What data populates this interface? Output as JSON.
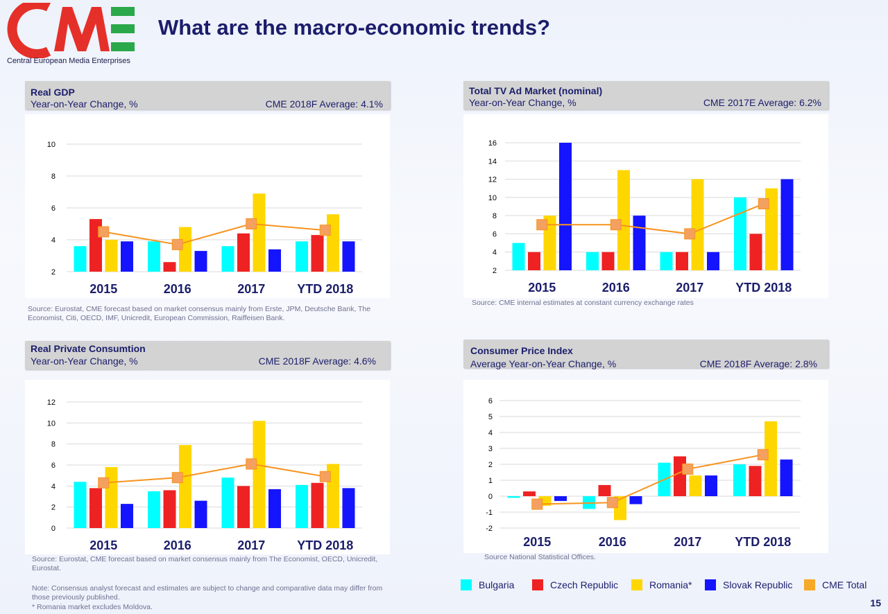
{
  "header": {
    "title": "What are the macro-economic trends?",
    "logo_subtitle": "Central European Media Enterprises"
  },
  "colors": {
    "Bulgaria": "#00ffff",
    "Czech Republic": "#ee2222",
    "Romania*": "#ffd700",
    "Slovak Republic": "#1414ff",
    "CME Total": "#f7931e",
    "title_navy": "#1b1d6b",
    "logo_red": "#e5302a",
    "logo_green": "#2aa84a"
  },
  "panels": {
    "gdp": {
      "title": "Real GDP",
      "subtitle": "Year-on-Year Change, %",
      "average": "CME 2018F Average: 4.1%",
      "source": "Source: Eurostat, CME forecast based on market consensus mainly from Erste, JPM, Deutsche Bank, The Economist, Citi, OECD, IMF, Unicredit, European Commission, Raiffeisen Bank."
    },
    "tv": {
      "title": "Total TV Ad Market (nominal)",
      "subtitle": "Year-on-Year Change, %",
      "average": "CME 2017E Average: 6.2%",
      "source": "Source: CME internal estimates at constant currency exchange rates"
    },
    "consumption": {
      "title": "Real Private Consumtion",
      "subtitle": "Year-on-Year Change, %",
      "average": "CME 2018F Average: 4.6%",
      "source": "Source: Eurostat, CME forecast based on market consensus mainly from The Economist, OECD, Unicredit, Eurostat."
    },
    "cpi": {
      "title": "Consumer Price Index",
      "subtitle": "Average Year-on-Year Change, %",
      "average": "CME 2018F Average: 2.8%",
      "source": "Source National Statistical Offices."
    }
  },
  "legend": [
    "Bulgaria",
    "Czech Republic",
    "Romania*",
    "Slovak Republic",
    "CME Total"
  ],
  "notes": {
    "note": "Note: Consensus analyst forecast and estimates are subject to change and comparative data may differ from those previously published.",
    "romania": "* Romania market excludes Moldova."
  },
  "page_number": "15",
  "chart_data": [
    {
      "id": "gdp",
      "type": "bar",
      "categories": [
        "2015",
        "2016",
        "2017",
        "YTD 2018"
      ],
      "ylim": [
        2,
        10
      ],
      "yticks": [
        2,
        4,
        6,
        8,
        10
      ],
      "grid": true,
      "series": [
        {
          "name": "Bulgaria",
          "values": [
            3.6,
            3.9,
            3.6,
            3.9
          ]
        },
        {
          "name": "Czech Republic",
          "values": [
            5.3,
            2.6,
            4.4,
            4.3
          ]
        },
        {
          "name": "Romania*",
          "values": [
            4.0,
            4.8,
            6.9,
            5.6
          ]
        },
        {
          "name": "Slovak Republic",
          "values": [
            3.9,
            3.3,
            3.4,
            3.9
          ]
        }
      ],
      "line": {
        "name": "CME Total",
        "values": [
          4.5,
          3.7,
          5.0,
          4.6
        ]
      }
    },
    {
      "id": "tv",
      "type": "bar",
      "categories": [
        "2015",
        "2016",
        "2017",
        "YTD 2018"
      ],
      "ylim": [
        2,
        16
      ],
      "yticks": [
        2,
        4,
        6,
        8,
        10,
        12,
        14,
        16
      ],
      "grid": true,
      "series": [
        {
          "name": "Bulgaria",
          "values": [
            5,
            4,
            4,
            10
          ]
        },
        {
          "name": "Czech Republic",
          "values": [
            4,
            4,
            4,
            6
          ]
        },
        {
          "name": "Romania*",
          "values": [
            8,
            13,
            12,
            11
          ]
        },
        {
          "name": "Slovak Republic",
          "values": [
            16,
            8,
            4,
            12
          ]
        }
      ],
      "line": {
        "name": "CME Total",
        "values": [
          7.0,
          7.0,
          6.0,
          9.3
        ]
      }
    },
    {
      "id": "consumption",
      "type": "bar",
      "categories": [
        "2015",
        "2016",
        "2017",
        "YTD 2018"
      ],
      "ylim": [
        0,
        12
      ],
      "yticks": [
        0,
        2,
        4,
        6,
        8,
        10,
        12
      ],
      "grid": true,
      "series": [
        {
          "name": "Bulgaria",
          "values": [
            4.4,
            3.5,
            4.8,
            4.1
          ]
        },
        {
          "name": "Czech Republic",
          "values": [
            3.8,
            3.6,
            4.0,
            4.3
          ]
        },
        {
          "name": "Romania*",
          "values": [
            5.8,
            7.9,
            10.2,
            6.1
          ]
        },
        {
          "name": "Slovak Republic",
          "values": [
            2.3,
            2.6,
            3.7,
            3.8
          ]
        }
      ],
      "line": {
        "name": "CME Total",
        "values": [
          4.3,
          4.8,
          6.1,
          4.9
        ]
      }
    },
    {
      "id": "cpi",
      "type": "bar",
      "categories": [
        "2015",
        "2016",
        "2017",
        "YTD 2018"
      ],
      "ylim": [
        -2,
        6
      ],
      "yticks": [
        -2,
        -1,
        0,
        1,
        2,
        3,
        4,
        5,
        6
      ],
      "grid": true,
      "series": [
        {
          "name": "Bulgaria",
          "values": [
            -0.1,
            -0.8,
            2.1,
            2.0
          ]
        },
        {
          "name": "Czech Republic",
          "values": [
            0.3,
            0.7,
            2.5,
            1.9
          ]
        },
        {
          "name": "Romania*",
          "values": [
            -0.6,
            -1.5,
            1.3,
            4.7
          ]
        },
        {
          "name": "Slovak Republic",
          "values": [
            -0.3,
            -0.5,
            1.3,
            2.3
          ]
        }
      ],
      "line": {
        "name": "CME Total",
        "values": [
          -0.5,
          -0.4,
          1.7,
          2.6
        ]
      }
    }
  ]
}
